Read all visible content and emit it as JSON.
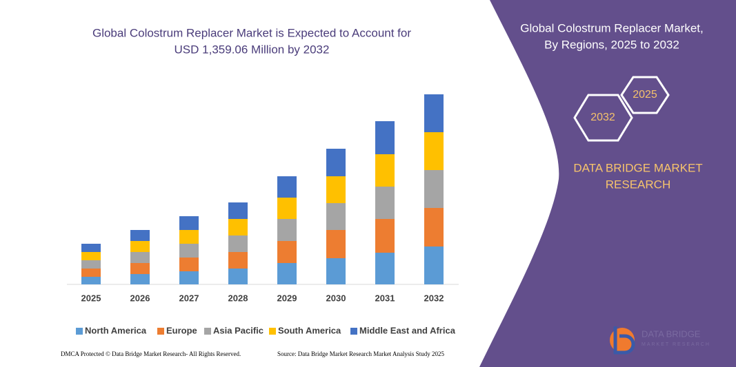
{
  "chart_data": {
    "type": "stacked_bar",
    "title": [
      "Global Colostrum Replacer Market is Expected to Account for",
      "USD 1,359.06 Million by 2032"
    ],
    "categories": [
      "2025",
      "2026",
      "2027",
      "2028",
      "2029",
      "2030",
      "2031",
      "2032"
    ],
    "series": [
      {
        "name": "North America",
        "color": "#5b9bd5",
        "values": [
          11,
          15,
          19,
          23,
          31,
          38,
          46,
          55
        ]
      },
      {
        "name": "Europe",
        "color": "#ed7d31",
        "values": [
          12,
          16,
          20,
          24,
          32,
          41,
          49,
          56
        ]
      },
      {
        "name": "Asia Pacific",
        "color": "#a5a5a5",
        "values": [
          12,
          16,
          20,
          24,
          32,
          39,
          47,
          55
        ]
      },
      {
        "name": "South America",
        "color": "#ffc000",
        "values": [
          12,
          16,
          20,
          24,
          31,
          39,
          47,
          55
        ]
      },
      {
        "name": "Middle East and Africa",
        "color": "#4472c4",
        "values": [
          12,
          16,
          20,
          24,
          31,
          40,
          48,
          55
        ]
      }
    ],
    "legend": "bottom"
  },
  "panel": {
    "title": [
      "Global Colostrum Replacer Market,",
      "By Regions, 2025 to 2032"
    ],
    "hexagons": [
      "2025",
      "2032"
    ],
    "brand": [
      "DATA BRIDGE MARKET",
      "RESEARCH"
    ]
  },
  "logo": [
    "DATA BRIDGE",
    "MARKET RESEARCH"
  ],
  "footer": {
    "left": "DMCA Protected © Data Bridge Market Research- All Rights Reserved.",
    "right": "Source: Data Bridge Market Research Market Analysis Study 2025"
  }
}
